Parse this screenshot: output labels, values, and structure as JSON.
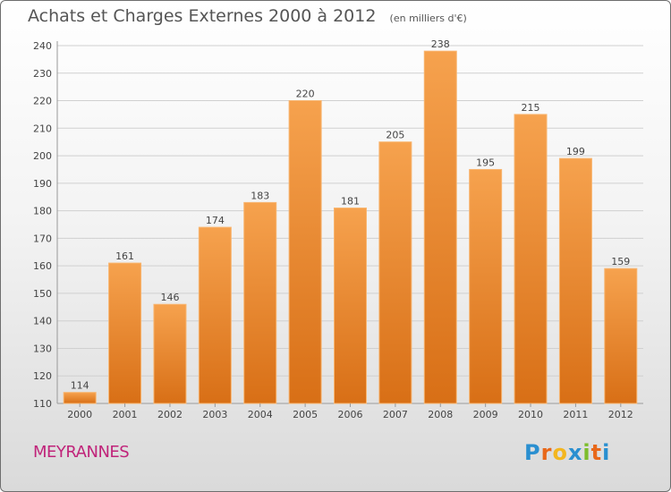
{
  "title": "Achats et Charges Externes 2000 à 2012",
  "subtitle": "(en milliers d'€)",
  "city": "MEYRANNES",
  "logo": {
    "letters": [
      "P",
      "r",
      "o",
      "x",
      "i",
      "t",
      "i"
    ],
    "colors": [
      "#2a8fd0",
      "#e8681a",
      "#f3b61f",
      "#2a8fd0",
      "#7dbd2c",
      "#e8681a",
      "#2a8fd0"
    ]
  },
  "colors": {
    "bar_top": "#f6a24e",
    "bar_bottom": "#d86f16",
    "bar_edge": "#f8b56f",
    "grid": "#d0d0d0",
    "text": "#444444"
  },
  "chart_data": {
    "type": "bar",
    "categories": [
      "2000",
      "2001",
      "2002",
      "2003",
      "2004",
      "2005",
      "2006",
      "2007",
      "2008",
      "2009",
      "2010",
      "2011",
      "2012"
    ],
    "values": [
      114,
      161,
      146,
      174,
      183,
      220,
      181,
      205,
      238,
      195,
      215,
      199,
      159
    ],
    "ylim": [
      110,
      240
    ],
    "yticks": [
      110,
      120,
      130,
      140,
      150,
      160,
      170,
      180,
      190,
      200,
      210,
      220,
      230,
      240
    ],
    "grid": true,
    "legend": "none"
  }
}
